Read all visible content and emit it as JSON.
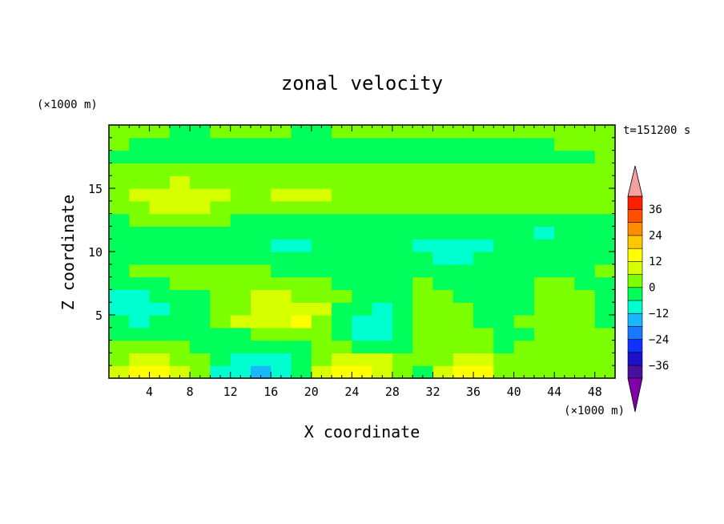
{
  "chart_data": {
    "type": "heatmap",
    "title": "zonal velocity",
    "xlabel": "X coordinate",
    "ylabel": "Z coordinate",
    "x_unit": "(×1000 m)",
    "y_unit": "(×1000 m)",
    "time_label": "t=151200 s",
    "xlim": [
      0,
      50
    ],
    "ylim": [
      0,
      20
    ],
    "x_ticks": [
      4,
      8,
      12,
      16,
      20,
      24,
      28,
      32,
      36,
      40,
      44,
      48
    ],
    "y_ticks": [
      5,
      10,
      15
    ],
    "colorbar": {
      "levels": [
        -42,
        -36,
        -30,
        -24,
        -18,
        -12,
        -6,
        0,
        6,
        12,
        18,
        24,
        30,
        36,
        42
      ],
      "tick_labels": [
        36,
        24,
        12,
        0,
        -12,
        -24,
        -36
      ],
      "extend": "both",
      "colors": [
        "#7f00a8",
        "#4b0fa0",
        "#1c10c8",
        "#1030ff",
        "#1a78ff",
        "#18b8ff",
        "#00ffd0",
        "#00ff5a",
        "#7cff00",
        "#d6ff00",
        "#ffff00",
        "#ffc800",
        "#ff8c00",
        "#ff5000",
        "#ff1e00",
        "#f4a0a0"
      ]
    },
    "rows": [
      {
        "z": 0.5,
        "values": [
          8,
          12,
          12,
          7,
          3,
          -8,
          -12,
          -14,
          -11,
          -3,
          10,
          13,
          14,
          10,
          0,
          -2,
          8,
          12,
          12,
          5,
          2,
          3,
          0,
          2,
          3
        ]
      },
      {
        "z": 1.5,
        "values": [
          4,
          8,
          8,
          4,
          1,
          -4,
          -7,
          -8,
          -7,
          -1,
          5,
          9,
          9,
          6,
          2,
          1,
          4,
          6,
          6,
          3,
          1,
          2,
          1,
          2,
          3
        ]
      },
      {
        "z": 2.5,
        "values": [
          0,
          2,
          2,
          0,
          -3,
          -5,
          -6,
          -6,
          -5,
          -2,
          0,
          1,
          -2,
          -6,
          -4,
          3,
          2,
          1,
          0,
          -3,
          0,
          2,
          1,
          2,
          2
        ]
      },
      {
        "z": 3.5,
        "values": [
          -4,
          -5,
          -5,
          -3,
          -4,
          -3,
          -1,
          3,
          5,
          5,
          1,
          -3,
          -7,
          -9,
          -5,
          3,
          4,
          1,
          0,
          -3,
          -1,
          3,
          2,
          1,
          0
        ]
      },
      {
        "z": 4.5,
        "values": [
          -5,
          -7,
          -6,
          -4,
          -2,
          0,
          6,
          9,
          11,
          12,
          5,
          -3,
          -8,
          -9,
          -4,
          3,
          4,
          1,
          -2,
          -3,
          0,
          3,
          3,
          1,
          -1
        ]
      },
      {
        "z": 5.5,
        "values": [
          -8,
          -9,
          -7,
          -4,
          -2,
          0,
          5,
          9,
          10,
          10,
          6,
          -1,
          -6,
          -7,
          -2,
          2,
          3,
          0,
          -2,
          -3,
          -2,
          4,
          4,
          0,
          -2
        ]
      },
      {
        "z": 6.5,
        "values": [
          -7,
          -8,
          -6,
          -4,
          -1,
          2,
          4,
          6,
          6,
          5,
          3,
          0,
          -3,
          -4,
          -1,
          1,
          1,
          -1,
          -3,
          -4,
          -3,
          3,
          3,
          0,
          -1
        ]
      },
      {
        "z": 7.5,
        "values": [
          -4,
          -4,
          -3,
          2,
          2,
          3,
          3,
          1,
          0,
          0,
          0,
          -1,
          -2,
          -2,
          -1,
          0,
          -1,
          -2,
          -3,
          -4,
          -3,
          0,
          0,
          -1,
          -1
        ]
      },
      {
        "z": 8.5,
        "values": [
          -1,
          0,
          0,
          1,
          2,
          2,
          1,
          0,
          -1,
          -1,
          -2,
          -2,
          -2,
          -2,
          -2,
          -2,
          -3,
          -3,
          -4,
          -4,
          -3,
          -2,
          -1,
          -1,
          0
        ]
      },
      {
        "z": 9.5,
        "values": [
          -2,
          -2,
          -3,
          -4,
          -4,
          -5,
          -5,
          -5,
          -5,
          -6,
          -6,
          -5,
          -5,
          -5,
          -5,
          -6,
          -7,
          -7,
          -6,
          -6,
          -5,
          -5,
          -4,
          -3,
          -3
        ]
      },
      {
        "z": 10.5,
        "values": [
          -3,
          -4,
          -5,
          -6,
          -6,
          -6,
          -6,
          -6,
          -7,
          -7,
          -6,
          -6,
          -5,
          -5,
          -6,
          -7,
          -7,
          -7,
          -7,
          -6,
          -6,
          -6,
          -5,
          -4,
          -3
        ]
      },
      {
        "z": 11.5,
        "values": [
          -4,
          -4,
          -5,
          -5,
          -5,
          -5,
          -5,
          -4,
          -4,
          -5,
          -5,
          -5,
          -4,
          -4,
          -5,
          -5,
          -6,
          -6,
          -6,
          -6,
          -6,
          -7,
          -6,
          -5,
          -4
        ]
      },
      {
        "z": 12.5,
        "values": [
          -1,
          1,
          2,
          2,
          1,
          0,
          -1,
          -2,
          -3,
          -3,
          -2,
          -2,
          -2,
          -3,
          -3,
          -4,
          -4,
          -3,
          -3,
          -2,
          -2,
          -2,
          -2,
          -2,
          -2
        ]
      },
      {
        "z": 13.5,
        "values": [
          3,
          5,
          7,
          8,
          7,
          5,
          4,
          3,
          4,
          5,
          5,
          4,
          3,
          2,
          1,
          0,
          1,
          2,
          2,
          2,
          1,
          0,
          0,
          1,
          1
        ]
      },
      {
        "z": 14.5,
        "values": [
          5,
          7,
          9,
          11,
          10,
          7,
          5,
          5,
          6,
          8,
          7,
          5,
          4,
          4,
          3,
          3,
          4,
          5,
          5,
          4,
          3,
          3,
          3,
          4,
          4
        ]
      },
      {
        "z": 15.5,
        "values": [
          3,
          4,
          5,
          6,
          5,
          3,
          2,
          2,
          2,
          3,
          2,
          1,
          1,
          1,
          1,
          1,
          2,
          3,
          3,
          2,
          2,
          2,
          2,
          2,
          2
        ]
      },
      {
        "z": 16.5,
        "values": [
          0,
          1,
          2,
          2,
          3,
          4,
          4,
          4,
          3,
          2,
          2,
          1,
          1,
          2,
          3,
          4,
          5,
          5,
          4,
          3,
          2,
          1,
          1,
          0,
          0
        ]
      },
      {
        "z": 17.5,
        "values": [
          -3,
          -2,
          -1,
          -1,
          -1,
          -2,
          -3,
          -3,
          -4,
          -4,
          -4,
          -5,
          -5,
          -5,
          -5,
          -4,
          -3,
          -3,
          -4,
          -4,
          -4,
          -3,
          -2,
          -1,
          0
        ]
      },
      {
        "z": 18.5,
        "values": [
          0,
          -1,
          -2,
          -3,
          -4,
          -4,
          -3,
          -2,
          -1,
          -2,
          -3,
          -4,
          -4,
          -3,
          -2,
          -1,
          -1,
          -2,
          -3,
          -3,
          -2,
          -1,
          0,
          0,
          1
        ]
      },
      {
        "z": 19.5,
        "values": [
          1,
          1,
          0,
          -1,
          -1,
          0,
          1,
          1,
          0,
          -1,
          -1,
          0,
          1,
          1,
          0,
          0,
          1,
          1,
          0,
          0,
          1,
          1,
          2,
          1,
          1
        ]
      }
    ]
  }
}
